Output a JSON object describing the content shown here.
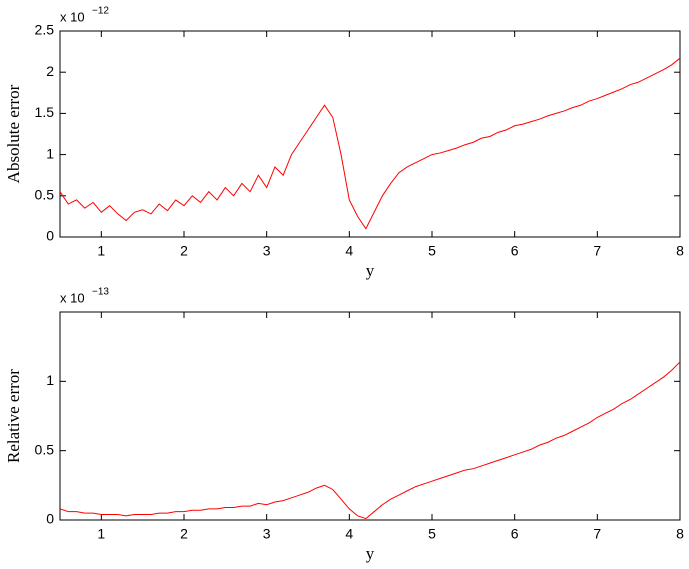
{
  "chart_data": [
    {
      "type": "line",
      "xlabel": "y",
      "ylabel": "Absolute error",
      "y_multiplier": "x 10",
      "y_exponent": "−12",
      "color": "#ff0000",
      "x": [
        0.5,
        0.6,
        0.7,
        0.8,
        0.9,
        1.0,
        1.1,
        1.2,
        1.3,
        1.4,
        1.5,
        1.6,
        1.7,
        1.8,
        1.9,
        2.0,
        2.1,
        2.2,
        2.3,
        2.4,
        2.5,
        2.6,
        2.7,
        2.8,
        2.9,
        3.0,
        3.1,
        3.2,
        3.3,
        3.4,
        3.5,
        3.6,
        3.7,
        3.8,
        3.9,
        4.0,
        4.1,
        4.2,
        4.3,
        4.4,
        4.5,
        4.6,
        4.7,
        4.8,
        4.9,
        5.0,
        5.1,
        5.2,
        5.3,
        5.4,
        5.5,
        5.6,
        5.7,
        5.8,
        5.9,
        6.0,
        6.1,
        6.2,
        6.3,
        6.4,
        6.5,
        6.6,
        6.7,
        6.8,
        6.9,
        7.0,
        7.1,
        7.2,
        7.3,
        7.4,
        7.5,
        7.6,
        7.7,
        7.8,
        7.9,
        8.0
      ],
      "values": [
        0.55,
        0.4,
        0.45,
        0.35,
        0.42,
        0.3,
        0.38,
        0.28,
        0.2,
        0.3,
        0.33,
        0.28,
        0.4,
        0.32,
        0.45,
        0.38,
        0.5,
        0.42,
        0.55,
        0.45,
        0.6,
        0.5,
        0.65,
        0.55,
        0.75,
        0.6,
        0.85,
        0.75,
        1.0,
        1.15,
        1.3,
        1.45,
        1.6,
        1.45,
        1.0,
        0.45,
        0.25,
        0.1,
        0.3,
        0.5,
        0.65,
        0.78,
        0.85,
        0.9,
        0.95,
        1.0,
        1.02,
        1.05,
        1.08,
        1.12,
        1.15,
        1.2,
        1.22,
        1.27,
        1.3,
        1.35,
        1.37,
        1.4,
        1.43,
        1.47,
        1.5,
        1.53,
        1.57,
        1.6,
        1.65,
        1.68,
        1.72,
        1.76,
        1.8,
        1.85,
        1.88,
        1.93,
        1.98,
        2.03,
        2.09,
        2.17
      ],
      "xlim": [
        0.5,
        8
      ],
      "xticks": [
        1,
        2,
        3,
        4,
        5,
        6,
        7,
        8
      ],
      "ylim": [
        0,
        2.5
      ],
      "yticks": [
        0,
        0.5,
        1,
        1.5,
        2,
        2.5
      ]
    },
    {
      "type": "line",
      "xlabel": "y",
      "ylabel": "Relative error",
      "y_multiplier": "x 10",
      "y_exponent": "−13",
      "color": "#ff0000",
      "x": [
        0.5,
        0.6,
        0.7,
        0.8,
        0.9,
        1.0,
        1.1,
        1.2,
        1.3,
        1.4,
        1.5,
        1.6,
        1.7,
        1.8,
        1.9,
        2.0,
        2.1,
        2.2,
        2.3,
        2.4,
        2.5,
        2.6,
        2.7,
        2.8,
        2.9,
        3.0,
        3.1,
        3.2,
        3.3,
        3.4,
        3.5,
        3.6,
        3.7,
        3.8,
        3.9,
        4.0,
        4.1,
        4.2,
        4.3,
        4.4,
        4.5,
        4.6,
        4.7,
        4.8,
        4.9,
        5.0,
        5.1,
        5.2,
        5.3,
        5.4,
        5.5,
        5.6,
        5.7,
        5.8,
        5.9,
        6.0,
        6.1,
        6.2,
        6.3,
        6.4,
        6.5,
        6.6,
        6.7,
        6.8,
        6.9,
        7.0,
        7.1,
        7.2,
        7.3,
        7.4,
        7.5,
        7.6,
        7.7,
        7.8,
        7.9,
        8.0
      ],
      "values": [
        0.08,
        0.06,
        0.06,
        0.05,
        0.05,
        0.04,
        0.04,
        0.04,
        0.03,
        0.04,
        0.04,
        0.04,
        0.05,
        0.05,
        0.06,
        0.06,
        0.07,
        0.07,
        0.08,
        0.08,
        0.09,
        0.09,
        0.1,
        0.1,
        0.12,
        0.11,
        0.13,
        0.14,
        0.16,
        0.18,
        0.2,
        0.23,
        0.25,
        0.22,
        0.15,
        0.08,
        0.03,
        0.01,
        0.06,
        0.11,
        0.15,
        0.18,
        0.21,
        0.24,
        0.26,
        0.28,
        0.3,
        0.32,
        0.34,
        0.36,
        0.37,
        0.39,
        0.41,
        0.43,
        0.45,
        0.47,
        0.49,
        0.51,
        0.54,
        0.56,
        0.59,
        0.61,
        0.64,
        0.67,
        0.7,
        0.74,
        0.77,
        0.8,
        0.84,
        0.87,
        0.91,
        0.95,
        0.99,
        1.03,
        1.08,
        1.14
      ],
      "xlim": [
        0.5,
        8
      ],
      "xticks": [
        1,
        2,
        3,
        4,
        5,
        6,
        7,
        8
      ],
      "ylim": [
        0,
        1.5
      ],
      "yticks": [
        0,
        0.5,
        1
      ]
    }
  ]
}
